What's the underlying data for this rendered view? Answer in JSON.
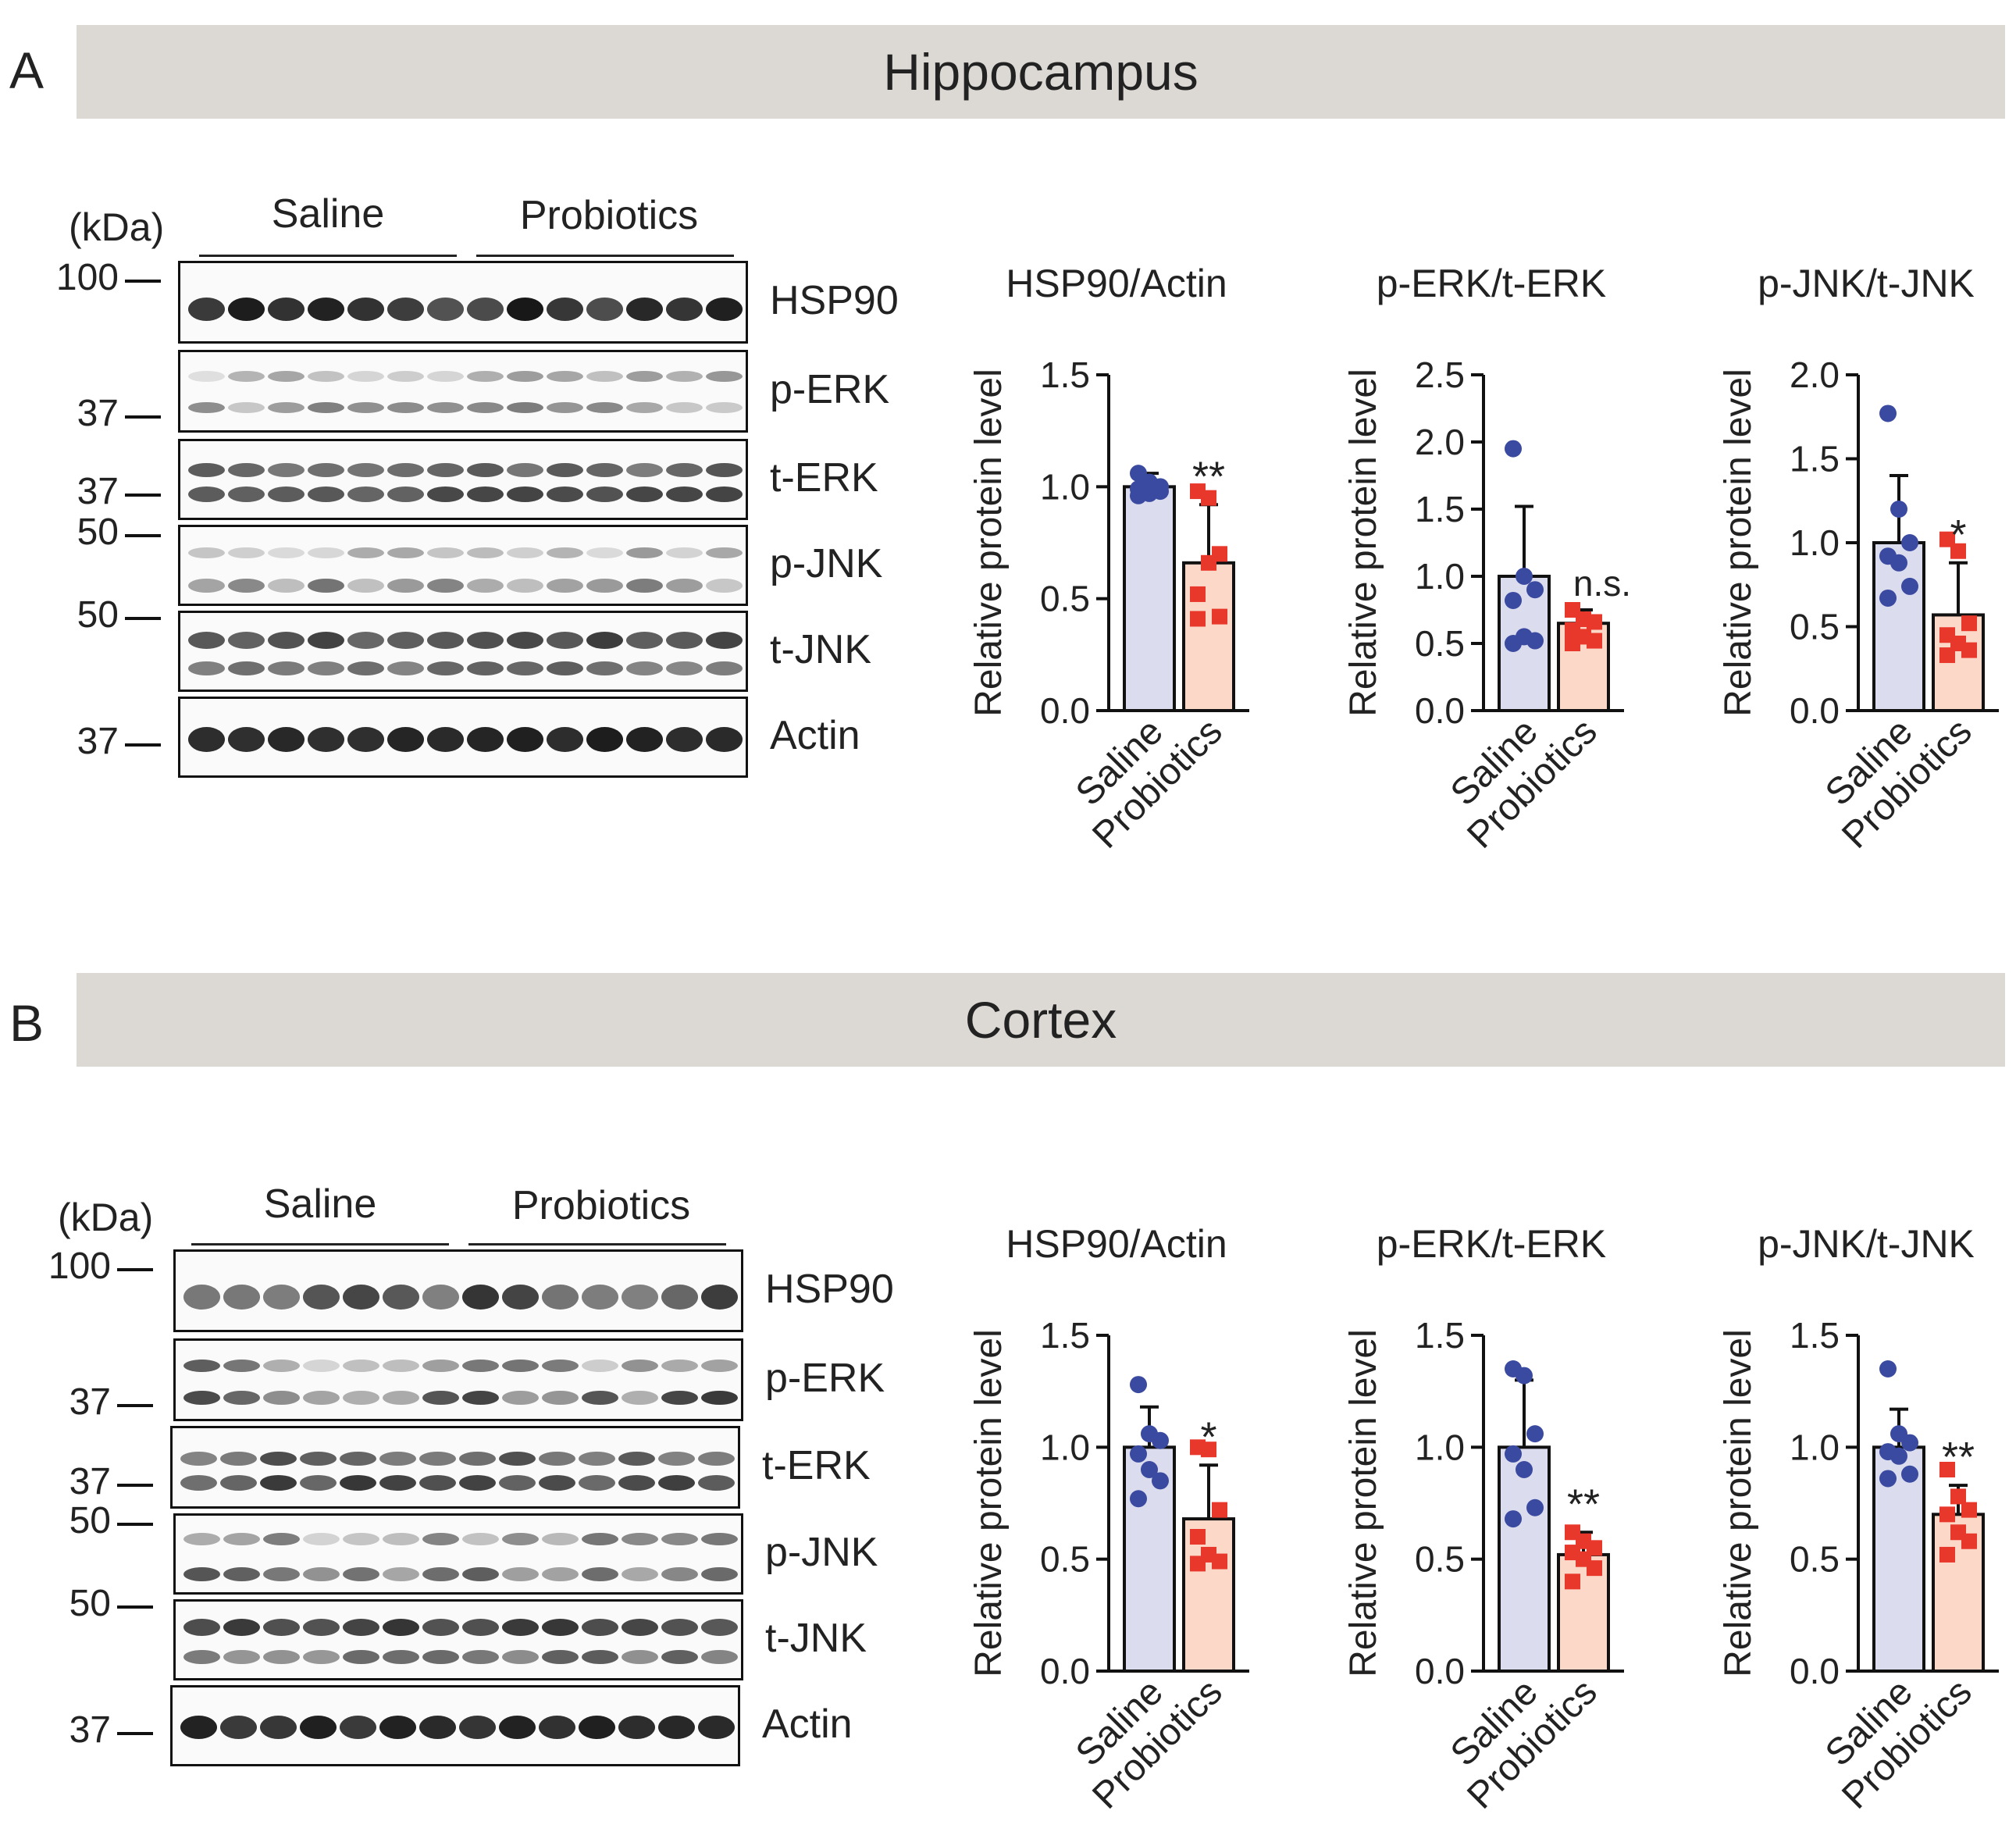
{
  "panels": [
    {
      "letter": "A",
      "region": "Hippocampus",
      "kda_label": "(kDa)",
      "groups": [
        "Saline",
        "Probiotics"
      ],
      "blots": [
        {
          "name": "HSP90",
          "marker": "100"
        },
        {
          "name": "p-ERK",
          "marker": "37"
        },
        {
          "name": "t-ERK",
          "marker": "37"
        },
        {
          "name": "p-JNK",
          "marker": "50"
        },
        {
          "name": "t-JNK",
          "marker": "50"
        },
        {
          "name": "Actin",
          "marker": "37"
        }
      ]
    },
    {
      "letter": "B",
      "region": "Cortex",
      "kda_label": "(kDa)",
      "groups": [
        "Saline",
        "Probiotics"
      ],
      "blots": [
        {
          "name": "HSP90",
          "marker": "100"
        },
        {
          "name": "p-ERK",
          "marker": "37"
        },
        {
          "name": "t-ERK",
          "marker": "37"
        },
        {
          "name": "p-JNK",
          "marker": "50"
        },
        {
          "name": "t-JNK",
          "marker": "50"
        },
        {
          "name": "Actin",
          "marker": "37"
        }
      ]
    }
  ],
  "colors": {
    "saline_bar": "#dcdcef",
    "saline_dot": "#3a4aa0",
    "probiotics_bar": "#fcd8c8",
    "probiotics_dot": "#e8382c",
    "axis": "#111111"
  },
  "chart_data": [
    {
      "panel": "A",
      "type": "bar",
      "title": "HSP90/Actin",
      "ylabel": "Relative protein level",
      "categories": [
        "Saline",
        "Probiotics"
      ],
      "ylim": [
        0,
        1.5
      ],
      "yticks": [
        "0.0",
        "0.5",
        "1.0",
        "1.5"
      ],
      "means": [
        1.0,
        0.66
      ],
      "sd": [
        0.06,
        0.26
      ],
      "significance": "**",
      "points": [
        [
          1.06,
          1.02,
          1.0,
          0.99,
          0.97,
          0.98,
          0.96
        ],
        [
          0.98,
          0.95,
          0.7,
          0.52,
          0.66,
          0.42,
          0.41
        ]
      ]
    },
    {
      "panel": "A",
      "type": "bar",
      "title": "p-ERK/t-ERK",
      "ylabel": "Relative protein level",
      "categories": [
        "Saline",
        "Probiotics"
      ],
      "ylim": [
        0,
        2.5
      ],
      "yticks": [
        "0.0",
        "0.5",
        "1.0",
        "1.5",
        "2.0",
        "2.5"
      ],
      "means": [
        1.0,
        0.65
      ],
      "sd": [
        0.52,
        0.1
      ],
      "significance": "n.s.",
      "points": [
        [
          1.95,
          1.0,
          0.9,
          0.82,
          0.55,
          0.52,
          0.5
        ],
        [
          0.75,
          0.68,
          0.66,
          0.6,
          0.55,
          0.52,
          0.5
        ]
      ]
    },
    {
      "panel": "A",
      "type": "bar",
      "title": "p-JNK/t-JNK",
      "ylabel": "Relative protein level",
      "categories": [
        "Saline",
        "Probiotics"
      ],
      "ylim": [
        0,
        2.0
      ],
      "yticks": [
        "0.0",
        "0.5",
        "1.0",
        "1.5",
        "2.0"
      ],
      "means": [
        1.0,
        0.57
      ],
      "sd": [
        0.4,
        0.31
      ],
      "significance": "*",
      "points": [
        [
          1.77,
          1.2,
          1.0,
          0.92,
          0.88,
          0.74,
          0.67
        ],
        [
          1.02,
          0.95,
          0.52,
          0.45,
          0.4,
          0.36,
          0.33
        ]
      ]
    },
    {
      "panel": "B",
      "type": "bar",
      "title": "HSP90/Actin",
      "ylabel": "Relative protein level",
      "categories": [
        "Saline",
        "Probiotics"
      ],
      "ylim": [
        0,
        1.5
      ],
      "yticks": [
        "0.0",
        "0.5",
        "1.0",
        "1.5"
      ],
      "means": [
        1.0,
        0.68
      ],
      "sd": [
        0.18,
        0.24
      ],
      "significance": "*",
      "points": [
        [
          1.28,
          1.06,
          1.03,
          0.97,
          0.9,
          0.85,
          0.77
        ],
        [
          1.0,
          0.99,
          0.72,
          0.6,
          0.52,
          0.49,
          0.48
        ]
      ]
    },
    {
      "panel": "B",
      "type": "bar",
      "title": "p-ERK/t-ERK",
      "ylabel": "Relative protein level",
      "categories": [
        "Saline",
        "Probiotics"
      ],
      "ylim": [
        0,
        1.5
      ],
      "yticks": [
        "0.0",
        "0.5",
        "1.0",
        "1.5"
      ],
      "means": [
        1.0,
        0.52
      ],
      "sd": [
        0.3,
        0.1
      ],
      "significance": "**",
      "points": [
        [
          1.35,
          1.32,
          1.06,
          0.97,
          0.9,
          0.73,
          0.68
        ],
        [
          0.62,
          0.58,
          0.55,
          0.53,
          0.5,
          0.46,
          0.4
        ]
      ]
    },
    {
      "panel": "B",
      "type": "bar",
      "title": "p-JNK/t-JNK",
      "ylabel": "Relative protein level",
      "categories": [
        "Saline",
        "Probiotics"
      ],
      "ylim": [
        0,
        1.5
      ],
      "yticks": [
        "0.0",
        "0.5",
        "1.0",
        "1.5"
      ],
      "means": [
        1.0,
        0.7
      ],
      "sd": [
        0.17,
        0.13
      ],
      "significance": "**",
      "points": [
        [
          1.35,
          1.06,
          1.02,
          0.98,
          0.96,
          0.88,
          0.86
        ],
        [
          0.9,
          0.78,
          0.72,
          0.7,
          0.62,
          0.58,
          0.52
        ]
      ]
    }
  ]
}
